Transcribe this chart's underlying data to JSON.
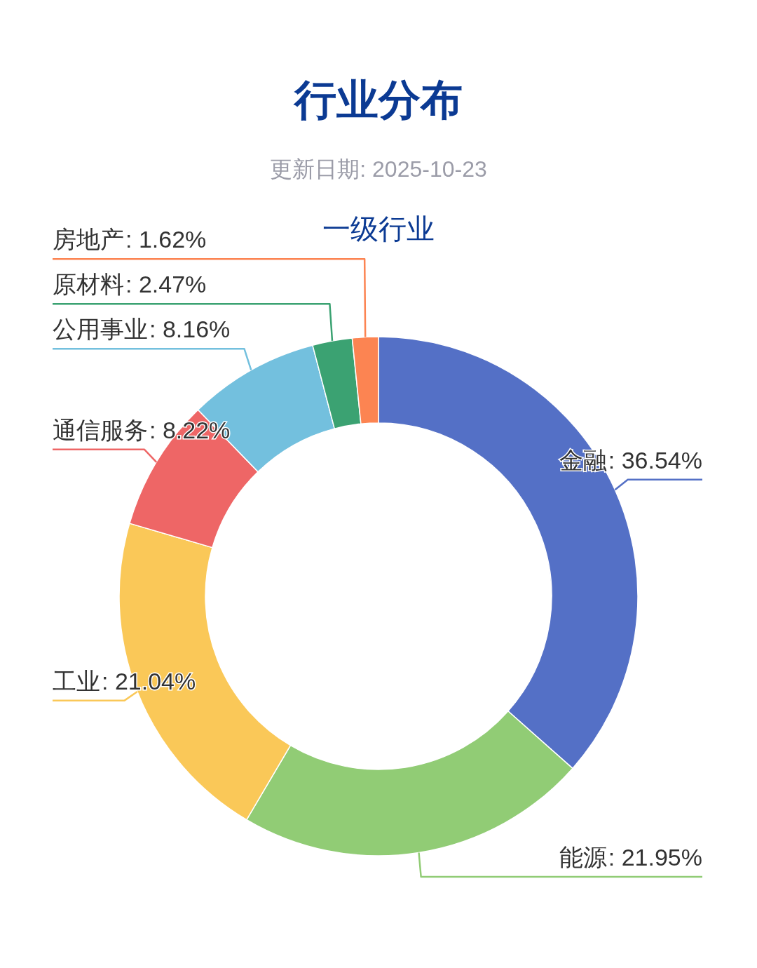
{
  "chart_data": {
    "type": "donut",
    "title": "行业分布",
    "subtitle": "更新日期: 2025-10-23",
    "annotations": [
      "一级行业"
    ],
    "categories": [
      "金融",
      "能源",
      "工业",
      "通信服务",
      "公用事业",
      "原材料",
      "房地产"
    ],
    "values": [
      36.54,
      21.95,
      21.04,
      8.22,
      8.16,
      2.47,
      1.62
    ],
    "colors": [
      "#5470c6",
      "#91cc75",
      "#fac858",
      "#ee6666",
      "#73c0de",
      "#3ba272",
      "#fc8452"
    ],
    "value_labels": [
      ": 36.54%",
      ": 21.95%",
      ": 21.04%",
      ": 8.22%",
      ": 8.16%",
      ": 2.47%",
      ": 1.62%"
    ]
  }
}
